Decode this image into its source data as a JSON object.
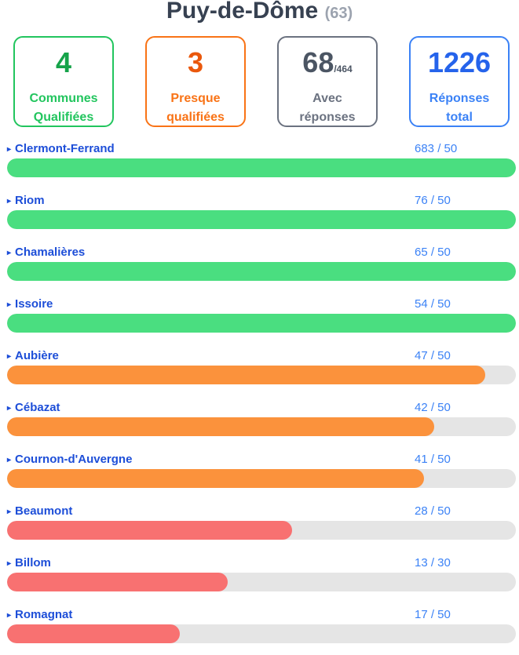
{
  "header": {
    "title": "Puy-de-Dôme",
    "code": "(63)"
  },
  "stats": [
    {
      "value": "4",
      "suffix": "",
      "label1": "Communes",
      "label2": "Qualifiées",
      "border": "#22c55e",
      "numColor": "#16a34a",
      "lblColor": "#22c55e"
    },
    {
      "value": "3",
      "suffix": "",
      "label1": "Presque",
      "label2": "qualifiées",
      "border": "#f97316",
      "numColor": "#ea580c",
      "lblColor": "#f97316"
    },
    {
      "value": "68",
      "suffix": "/464",
      "label1": "Avec",
      "label2": "réponses",
      "border": "#6b7280",
      "numColor": "#4b5563",
      "lblColor": "#6b7280"
    },
    {
      "value": "1226",
      "suffix": "",
      "label1": "Réponses",
      "label2": "total",
      "border": "#3b82f6",
      "numColor": "#2563eb",
      "lblColor": "#3b82f6"
    }
  ],
  "communes": [
    {
      "name": "Clermont-Ferrand",
      "count": "683 / 50",
      "progress": 1.0,
      "color": "#4ade80"
    },
    {
      "name": "Riom",
      "count": "76 / 50",
      "progress": 1.0,
      "color": "#4ade80"
    },
    {
      "name": "Chamalières",
      "count": "65 / 50",
      "progress": 1.0,
      "color": "#4ade80"
    },
    {
      "name": "Issoire",
      "count": "54 / 50",
      "progress": 1.0,
      "color": "#4ade80"
    },
    {
      "name": "Aubière",
      "count": "47 / 50",
      "progress": 0.94,
      "color": "#fb923c"
    },
    {
      "name": "Cébazat",
      "count": "42 / 50",
      "progress": 0.84,
      "color": "#fb923c"
    },
    {
      "name": "Cournon-d'Auvergne",
      "count": "41 / 50",
      "progress": 0.82,
      "color": "#fb923c"
    },
    {
      "name": "Beaumont",
      "count": "28 / 50",
      "progress": 0.56,
      "color": "#f87171"
    },
    {
      "name": "Billom",
      "count": "13 / 30",
      "progress": 0.433,
      "color": "#f87171"
    },
    {
      "name": "Romagnat",
      "count": "17 / 50",
      "progress": 0.34,
      "color": "#f87171"
    }
  ],
  "expand_icon": "▸"
}
